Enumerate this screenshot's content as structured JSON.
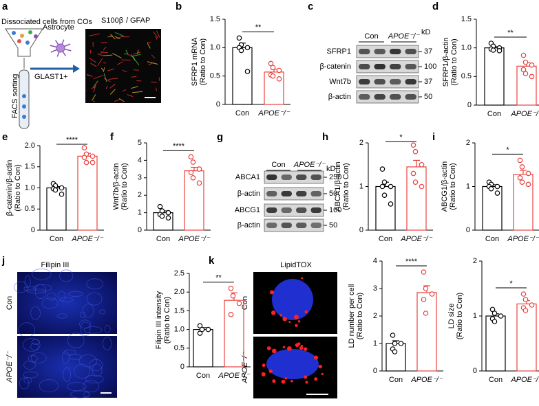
{
  "panel_labels": [
    "a",
    "b",
    "c",
    "d",
    "e",
    "f",
    "g",
    "h",
    "i",
    "j",
    "k"
  ],
  "panel_a": {
    "source": "Dissociated cells from COs",
    "sorting": "FACS sorting",
    "marker": "GLAST1+",
    "cell": "Astrocyte",
    "stain_1": "S100β",
    "stain_sep": "/",
    "stain_2": "GFAP"
  },
  "blot_c": {
    "groups": [
      "Con",
      "APOE⁻/⁻"
    ],
    "unit": "kD",
    "rows": [
      "SFRP1",
      "β-catenin",
      "Wnt7b",
      "β-actin"
    ],
    "sizes": [
      "37",
      "100",
      "37",
      "50"
    ]
  },
  "blot_g": {
    "groups": [
      "Con",
      "APOE⁻/⁻"
    ],
    "unit": "kD",
    "rows": [
      "ABCA1",
      "β-actin",
      "ABCG1",
      "β-actin"
    ],
    "sizes": [
      "250",
      "50",
      "100",
      "50"
    ]
  },
  "image_j": {
    "title": "Filipin III",
    "rows": [
      "Con",
      "APOE⁻/⁻"
    ]
  },
  "image_k": {
    "title": "LipidTOX",
    "rows": [
      "Con",
      "APOE⁻/⁻"
    ]
  },
  "chart_data": [
    {
      "type": "bar",
      "ylabel": [
        "SFRP1 mRNA",
        "(Ratio to Con)"
      ],
      "categories": [
        "Con",
        "APOE⁻/⁻"
      ],
      "colors": [
        "#000000",
        "#e8413c"
      ],
      "values": [
        1.0,
        0.57
      ],
      "errors": [
        0.08,
        0.05
      ],
      "points": [
        [
          1.17,
          1.05,
          1.0,
          1.0,
          0.95,
          0.58
        ],
        [
          0.72,
          0.65,
          0.6,
          0.52,
          0.5,
          0.45
        ]
      ],
      "annotation": "**",
      "ylim": [
        0,
        1.5
      ],
      "yticks": [
        0,
        0.5,
        {
          "value": 1,
          "label": "1.0"
        },
        1.5
      ]
    },
    {
      "type": "bar",
      "ylabel": [
        "SFRP1/β-actin",
        "(Ratio to Con)"
      ],
      "categories": [
        "Con",
        "APOE⁻/⁻"
      ],
      "colors": [
        "#000000",
        "#e8413c"
      ],
      "values": [
        1.0,
        0.68
      ],
      "errors": [
        0.02,
        0.06
      ],
      "points": [
        [
          1.08,
          1.03,
          1.0,
          0.98,
          0.96,
          0.95
        ],
        [
          0.87,
          0.75,
          0.7,
          0.62,
          0.55,
          0.5
        ]
      ],
      "annotation": "**",
      "ylim": [
        0,
        1.5
      ],
      "yticks": [
        0,
        0.5,
        {
          "value": 1,
          "label": "1.0"
        },
        1.5
      ]
    },
    {
      "type": "bar",
      "ylabel": [
        "β-catenin/β-actin",
        "(Ratio to Con)"
      ],
      "categories": [
        "Con",
        "APOE⁻/⁻"
      ],
      "colors": [
        "#000000",
        "#e8413c"
      ],
      "values": [
        1.0,
        1.75
      ],
      "errors": [
        0.03,
        0.07
      ],
      "points": [
        [
          1.1,
          1.05,
          1.0,
          0.98,
          0.95,
          0.85
        ],
        [
          1.95,
          1.8,
          1.75,
          1.72,
          1.6,
          1.6
        ]
      ],
      "annotation": "****",
      "ylim": [
        0,
        2
      ],
      "yticks": [
        0,
        0.5,
        {
          "value": 1,
          "label": "1.0"
        },
        1.5,
        {
          "value": 2,
          "label": "2.0"
        }
      ]
    },
    {
      "type": "bar",
      "ylabel": [
        "Wnt7b/β-actin",
        "(Ratio to Con)"
      ],
      "categories": [
        "Con",
        "APOE⁻/⁻"
      ],
      "colors": [
        "#000000",
        "#e8413c"
      ],
      "values": [
        1.0,
        3.4
      ],
      "errors": [
        0.1,
        0.2
      ],
      "points": [
        [
          1.35,
          1.1,
          1.0,
          0.9,
          0.8,
          0.7
        ],
        [
          4.2,
          3.9,
          3.5,
          3.3,
          3.0,
          2.7
        ]
      ],
      "annotation": "****",
      "ylim": [
        0,
        5
      ],
      "yticks": [
        0,
        1,
        2,
        3,
        4,
        5
      ]
    },
    {
      "type": "bar",
      "ylabel": [
        "ABCA1/β-actin",
        "(Ratio to Con)"
      ],
      "categories": [
        "Con",
        "APOE⁻/⁻"
      ],
      "colors": [
        "#000000",
        "#e8413c"
      ],
      "values": [
        1.0,
        1.45
      ],
      "errors": [
        0.1,
        0.15
      ],
      "points": [
        [
          1.4,
          1.1,
          1.0,
          1.0,
          0.8,
          0.6
        ],
        [
          1.95,
          1.8,
          1.5,
          1.3,
          1.1,
          1.0
        ]
      ],
      "annotation": "*",
      "ylim": [
        0,
        2
      ],
      "yticks": [
        0,
        1,
        2
      ]
    },
    {
      "type": "bar",
      "ylabel": [
        "ABCG1/β-actin",
        "(Ratio to Con)"
      ],
      "categories": [
        "Con",
        "APOE⁻/⁻"
      ],
      "colors": [
        "#000000",
        "#e8413c"
      ],
      "values": [
        1.0,
        1.28
      ],
      "errors": [
        0.04,
        0.09
      ],
      "points": [
        [
          1.1,
          1.05,
          1.0,
          1.0,
          0.95,
          0.85
        ],
        [
          1.6,
          1.45,
          1.3,
          1.2,
          1.1,
          1.05
        ]
      ],
      "annotation": "*",
      "ylim": [
        0,
        2
      ],
      "yticks": [
        0,
        1,
        2
      ]
    },
    {
      "type": "bar",
      "ylabel": [
        "Filipin III intensity",
        "(Ratio to Con)"
      ],
      "categories": [
        "Con",
        "APOE⁻/⁻"
      ],
      "colors": [
        "#000000",
        "#e8413c"
      ],
      "values": [
        1.0,
        1.78
      ],
      "errors": [
        0.05,
        0.2
      ],
      "points": [
        [
          1.1,
          1.0,
          1.0,
          0.9
        ],
        [
          2.1,
          1.9,
          1.7,
          1.4
        ]
      ],
      "annotation": "**",
      "ylim": [
        0,
        2.5
      ],
      "yticks": [
        0,
        0.5,
        {
          "value": 1,
          "label": "1.0"
        },
        1.5,
        {
          "value": 2,
          "label": "2.0"
        },
        2.5
      ]
    },
    {
      "type": "bar",
      "ylabel": [
        "LD number per cell",
        "(Ratio to Con)"
      ],
      "categories": [
        "Con",
        "APOE⁻/⁻"
      ],
      "colors": [
        "#000000",
        "#e8413c"
      ],
      "values": [
        1.0,
        2.85
      ],
      "errors": [
        0.1,
        0.25
      ],
      "points": [
        [
          1.3,
          1.0,
          1.0,
          0.8,
          0.7
        ],
        [
          3.6,
          3.0,
          2.8,
          2.6,
          2.1
        ]
      ],
      "annotation": "****",
      "ylim": [
        0,
        4
      ],
      "yticks": [
        0,
        1,
        2,
        3,
        4
      ]
    },
    {
      "type": "bar",
      "ylabel": [
        "LD size",
        "(Ratio to Con)"
      ],
      "categories": [
        "Con",
        "APOE⁻/⁻"
      ],
      "colors": [
        "#000000",
        "#e8413c"
      ],
      "values": [
        1.0,
        1.22
      ],
      "errors": [
        0.04,
        0.06
      ],
      "points": [
        [
          1.12,
          1.05,
          1.0,
          0.95,
          0.9
        ],
        [
          1.4,
          1.3,
          1.2,
          1.15,
          1.1
        ]
      ],
      "annotation": "*",
      "ylim": [
        0,
        2
      ],
      "yticks": [
        0,
        1,
        2
      ]
    }
  ]
}
